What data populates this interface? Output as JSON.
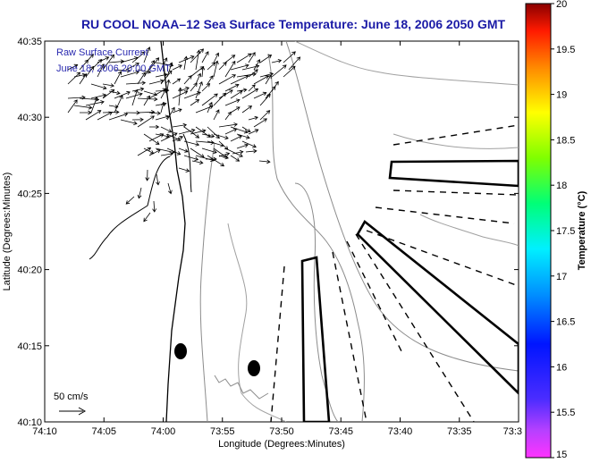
{
  "chart_data": {
    "type": "map",
    "title": "RU COOL  NOAA–12  Sea Surface Temperature:  June 18, 2006 2050 GMT",
    "xlabel": "Longitude (Degrees:Minutes)",
    "ylabel": "Latitude (Degrees:Minutes)",
    "x_ticks": [
      "74:10",
      "74:05",
      "74:00",
      "73:55",
      "73:50",
      "73:45",
      "73:40",
      "73:35",
      "73:3"
    ],
    "y_ticks": [
      "40:35",
      "40:30",
      "40:25",
      "40:20",
      "40:15",
      "40:10"
    ],
    "colorbar": {
      "label": "Temperature (°C)",
      "ticks": [
        "20",
        "19.5",
        "19",
        "18.5",
        "18",
        "17.5",
        "17",
        "16.5",
        "16",
        "15.5",
        "15"
      ],
      "range": [
        15,
        20
      ]
    },
    "annotations": {
      "current_title": "Raw Surface Current",
      "current_time": "June 18, 2006 20:00 GMT",
      "scale_label": "50 cm/s"
    }
  }
}
